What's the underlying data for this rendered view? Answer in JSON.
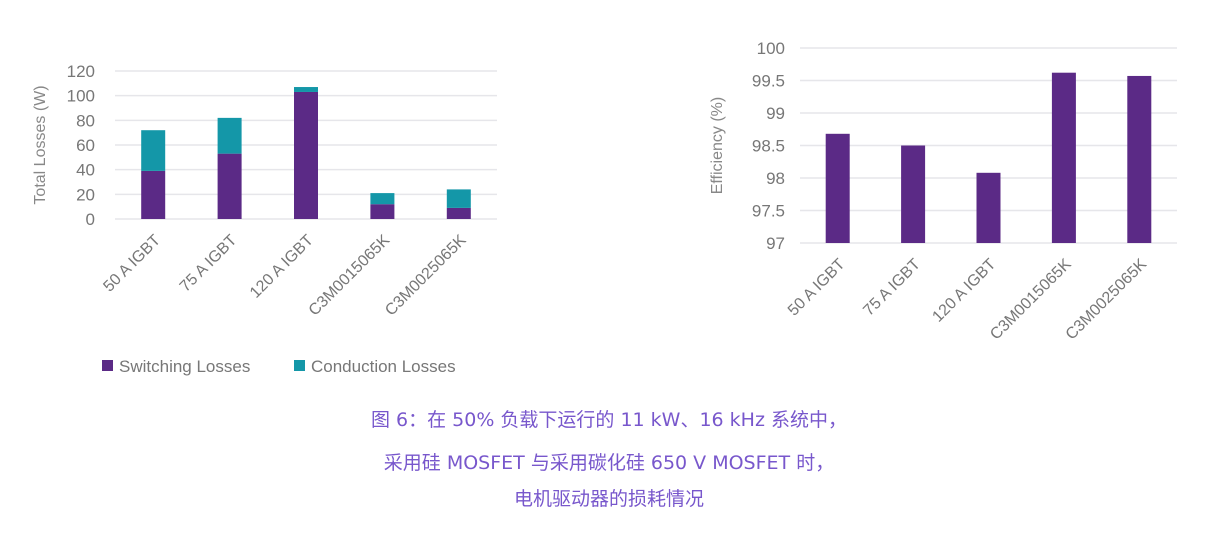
{
  "chart_data": [
    {
      "type": "bar",
      "stacked": true,
      "categories": [
        "50 A IGBT",
        "75 A IGBT",
        "120 A IGBT",
        "C3M0015065K",
        "C3M0025065K"
      ],
      "series": [
        {
          "name": "Switching Losses",
          "values": [
            39,
            53,
            103,
            12,
            9
          ],
          "color": "#5b2a86"
        },
        {
          "name": "Conduction Losses",
          "values": [
            33,
            29,
            4,
            9,
            15
          ],
          "color": "#1497a8"
        }
      ],
      "ylabel": "Total Losses (W)",
      "ylim": [
        0,
        120
      ],
      "yticks": [
        0,
        20,
        40,
        60,
        80,
        100,
        120
      ],
      "grid": true,
      "legend": "bottom"
    },
    {
      "type": "bar",
      "categories": [
        "50 A IGBT",
        "75 A IGBT",
        "120 A IGBT",
        "C3M0015065K",
        "C3M0025065K"
      ],
      "series": [
        {
          "values": [
            98.68,
            98.5,
            98.08,
            99.62,
            99.57
          ],
          "color": "#5b2a86"
        }
      ],
      "ylabel": "Efficiency (%)",
      "ylim": [
        97,
        100
      ],
      "yticks": [
        "97",
        "97.5",
        "98",
        "98.5",
        "99",
        "99.5",
        "100"
      ],
      "grid": true
    }
  ],
  "caption": {
    "line1": "图 6：在 50% 负载下运行的 11 kW、16 kHz 系统中，",
    "line2": "采用硅 MOSFET 与采用碳化硅 650 V MOSFET 时，",
    "line3": "电机驱动器的损耗情况"
  }
}
